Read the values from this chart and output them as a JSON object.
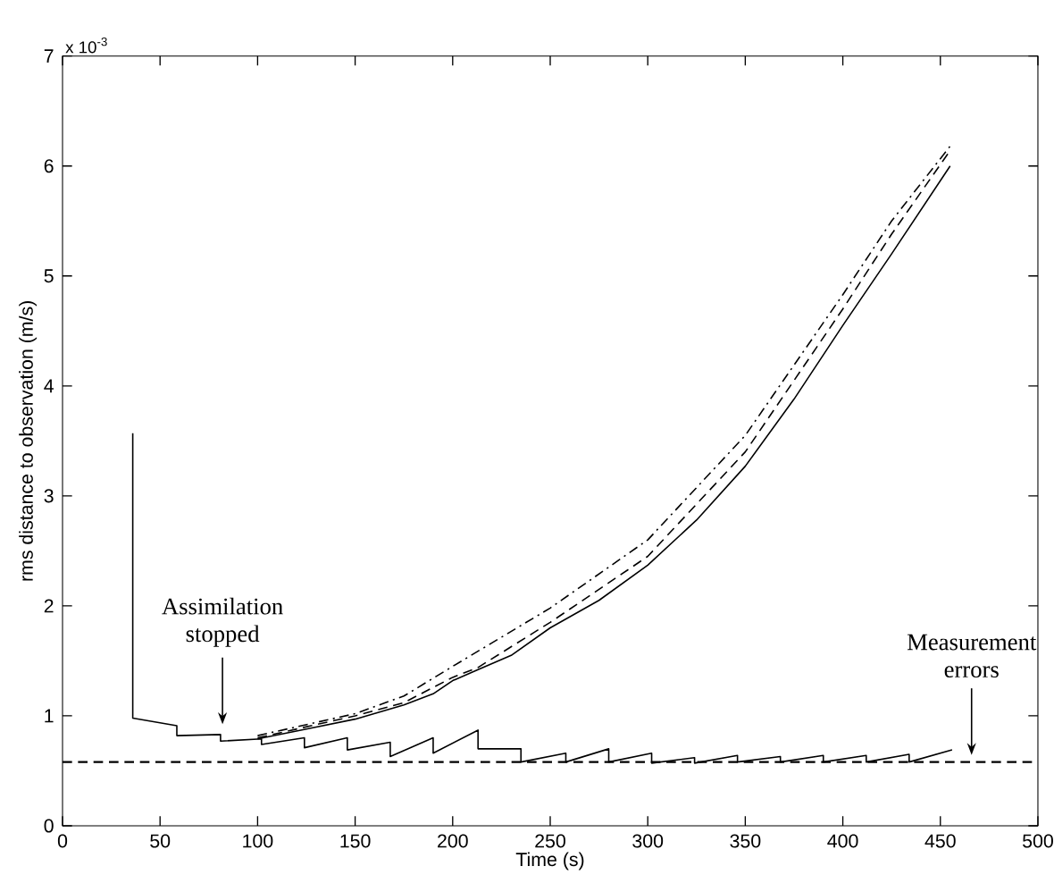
{
  "chart_data": {
    "type": "line",
    "xlabel": "Time (s)",
    "ylabel": "rms distance to observation (m/s)",
    "xlim": [
      0,
      500
    ],
    "ylim": [
      0,
      7
    ],
    "xticks": [
      0,
      50,
      100,
      150,
      200,
      250,
      300,
      350,
      400,
      450,
      500
    ],
    "yticks": [
      0,
      1,
      2,
      3,
      4,
      5,
      6,
      7
    ],
    "grid": false,
    "marker": "none",
    "series": [
      {
        "color": "#000000",
        "line_style": "solid",
        "x": [
          36,
          36,
          58.6,
          58.6,
          81,
          81,
          102,
          102,
          124,
          124,
          146,
          146,
          168,
          168,
          190,
          190,
          213,
          213,
          235,
          235,
          258,
          258,
          280,
          280,
          302,
          302,
          324,
          324,
          346,
          346,
          368,
          368,
          390,
          390,
          412,
          412,
          434,
          434,
          456
        ],
        "values": [
          3.57,
          0.98,
          0.91,
          0.82,
          0.83,
          0.77,
          0.79,
          0.74,
          0.8,
          0.71,
          0.8,
          0.69,
          0.76,
          0.63,
          0.8,
          0.66,
          0.87,
          0.7,
          0.7,
          0.58,
          0.66,
          0.58,
          0.7,
          0.58,
          0.66,
          0.57,
          0.62,
          0.57,
          0.64,
          0.58,
          0.63,
          0.58,
          0.64,
          0.58,
          0.64,
          0.58,
          0.65,
          0.58,
          0.69
        ]
      },
      {
        "color": "#000000",
        "line_style": "solid",
        "x": [
          100,
          125,
          150,
          175,
          190,
          200,
          213,
          230,
          250,
          275,
          300,
          325,
          350,
          375,
          400,
          425,
          455
        ],
        "values": [
          0.79,
          0.88,
          0.97,
          1.1,
          1.2,
          1.32,
          1.42,
          1.55,
          1.8,
          2.05,
          2.37,
          2.78,
          3.27,
          3.88,
          4.55,
          5.2,
          6.0
        ]
      },
      {
        "color": "#000000",
        "line_style": "dashed",
        "x": [
          100,
          125,
          150,
          175,
          200,
          213,
          250,
          300,
          350,
          400,
          425,
          455
        ],
        "values": [
          0.8,
          0.9,
          1.0,
          1.12,
          1.35,
          1.44,
          1.85,
          2.45,
          3.4,
          4.7,
          5.38,
          6.14
        ]
      },
      {
        "color": "#000000",
        "line_style": "dashdot",
        "x": [
          100,
          125,
          150,
          175,
          200,
          250,
          300,
          350,
          400,
          425,
          455
        ],
        "values": [
          0.82,
          0.92,
          1.02,
          1.18,
          1.45,
          1.98,
          2.6,
          3.55,
          4.83,
          5.5,
          6.18
        ]
      }
    ],
    "ref_lines": [
      {
        "axis": "y",
        "value": 0.58,
        "color": "#000000",
        "line_style": "dashed"
      }
    ],
    "annotations": [
      "x 10$^{-3}$",
      {
        "text": "Assimilation stopped",
        "x": 82,
        "y": 0.88
      },
      {
        "text": "Measurement errors",
        "x": 466,
        "y": 0.6
      }
    ]
  }
}
